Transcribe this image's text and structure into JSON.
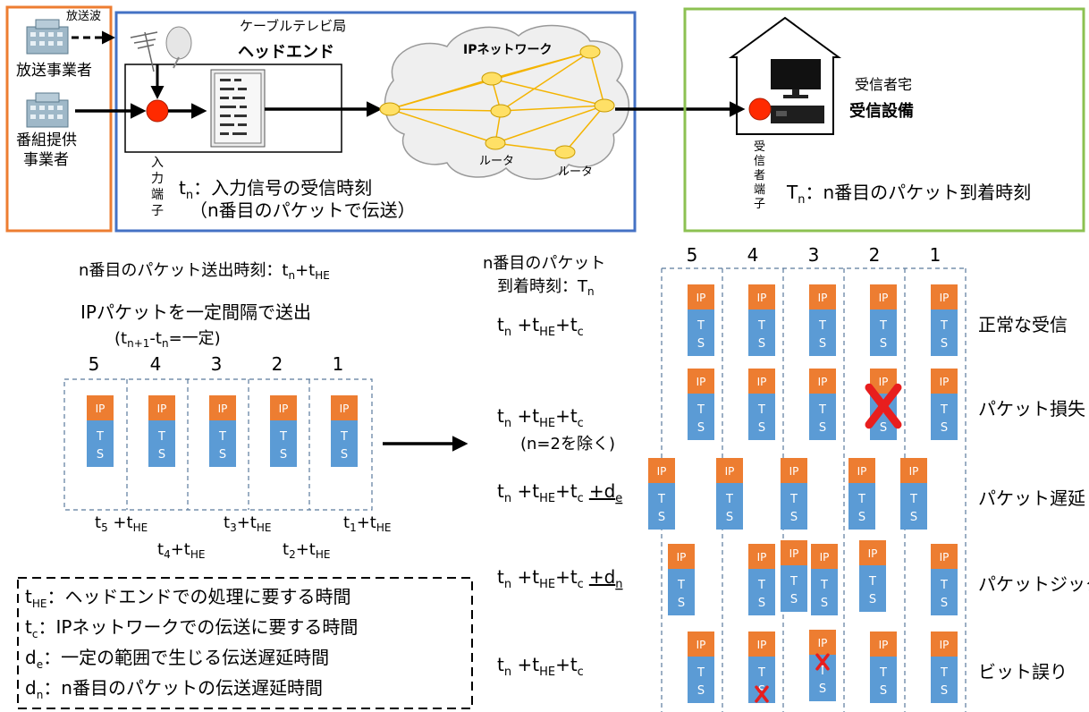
{
  "colors": {
    "broadcaster_box": "#ED7D31",
    "headend_box": "#4472C4",
    "home_box": "#8CC152",
    "ip_block": "#ED7D31",
    "ts_block": "#5B9BD5",
    "terminal_dot": "#FF2A00",
    "router_fill": "#FFE066",
    "network_link": "#F4B400",
    "error_mark": "#E81E1E"
  },
  "top": {
    "broadcast_wave": "放送波",
    "broadcaster": "放送事業者",
    "provider_line1": "番組提供",
    "provider_line2": "事業者",
    "cable_station": "ケーブルテレビ局",
    "headend": "ヘッドエンド",
    "ip_network": "IPネットワーク",
    "router1": "ルータ",
    "router2": "ルータ",
    "input_terminal": [
      "入",
      "力",
      "端",
      "子"
    ],
    "tn_main": "t",
    "tn_sub": "n",
    "tn_desc": "：入力信号の受信時刻",
    "tn_desc2": "（n番目のパケットで伝送）",
    "receiver_home": "受信者宅",
    "receiver_equipment": "受信設備",
    "receiver_terminal": [
      "受",
      "信",
      "者",
      "端",
      "子"
    ],
    "Tn_main": "T",
    "Tn_sub": "n",
    "Tn_desc": "：n番目のパケット到着時刻"
  },
  "sender": {
    "send_time_label": "n番目のパケット送出時刻：",
    "send_time_formula": {
      "t": "t",
      "n": "n",
      "plus": "+t",
      "he": "HE"
    },
    "const_interval": "IPパケットを一定間隔で送出",
    "interval_formula": {
      "open": "(t",
      "sub1": "n+1",
      "mid": "-t",
      "sub2": "n",
      "close": "=一定)"
    },
    "numbers": [
      "5",
      "4",
      "3",
      "2",
      "1"
    ],
    "ip_label": "IP",
    "ts_label": [
      "T",
      "S"
    ],
    "times": [
      {
        "t": "t",
        "sub": "5",
        "plus": " +t",
        "he": "HE"
      },
      {
        "t": "t",
        "sub": "4",
        "plus": "+t",
        "he": "HE"
      },
      {
        "t": "t",
        "sub": "3",
        "plus": "+t",
        "he": "HE"
      },
      {
        "t": "t",
        "sub": "2",
        "plus": "+t",
        "he": "HE"
      },
      {
        "t": "t",
        "sub": "1",
        "plus": "+t",
        "he": "HE"
      }
    ]
  },
  "receiver": {
    "arrival_label_line1": "n番目のパケット",
    "arrival_label_line2": "到着時刻：T",
    "arrival_label_sub": "n",
    "numbers": [
      "5",
      "4",
      "3",
      "2",
      "1"
    ],
    "rows": [
      {
        "label": "正常な受信",
        "formula_extra": "",
        "extra_sub": "",
        "note": ""
      },
      {
        "label": "パケット損失",
        "formula_extra": "",
        "extra_sub": "",
        "note": "(n=2を除く)"
      },
      {
        "label": "パケット遅延",
        "formula_extra": "+d",
        "extra_sub": "e",
        "note": ""
      },
      {
        "label": "パケットジッタ",
        "formula_extra": "+d",
        "extra_sub": "n",
        "note": ""
      },
      {
        "label": "ビット誤り",
        "formula_extra": "",
        "extra_sub": "",
        "note": ""
      }
    ],
    "formula": {
      "t": "t",
      "n": "n",
      "plus1": " +t",
      "he": "HE",
      "plus2": "+t",
      "c": "c"
    }
  },
  "legend": {
    "items": [
      {
        "sym": "t",
        "sub": "HE",
        "desc": "：ヘッドエンドでの処理に要する時間"
      },
      {
        "sym": "t",
        "sub": "c",
        "desc": "：IPネットワークでの伝送に要する時間"
      },
      {
        "sym": "d",
        "sub": "e",
        "desc": "：一定の範囲で生じる伝送遅延時間"
      },
      {
        "sym": "d",
        "sub": "n",
        "desc": "：n番目のパケットの伝送遅延時間"
      }
    ]
  }
}
